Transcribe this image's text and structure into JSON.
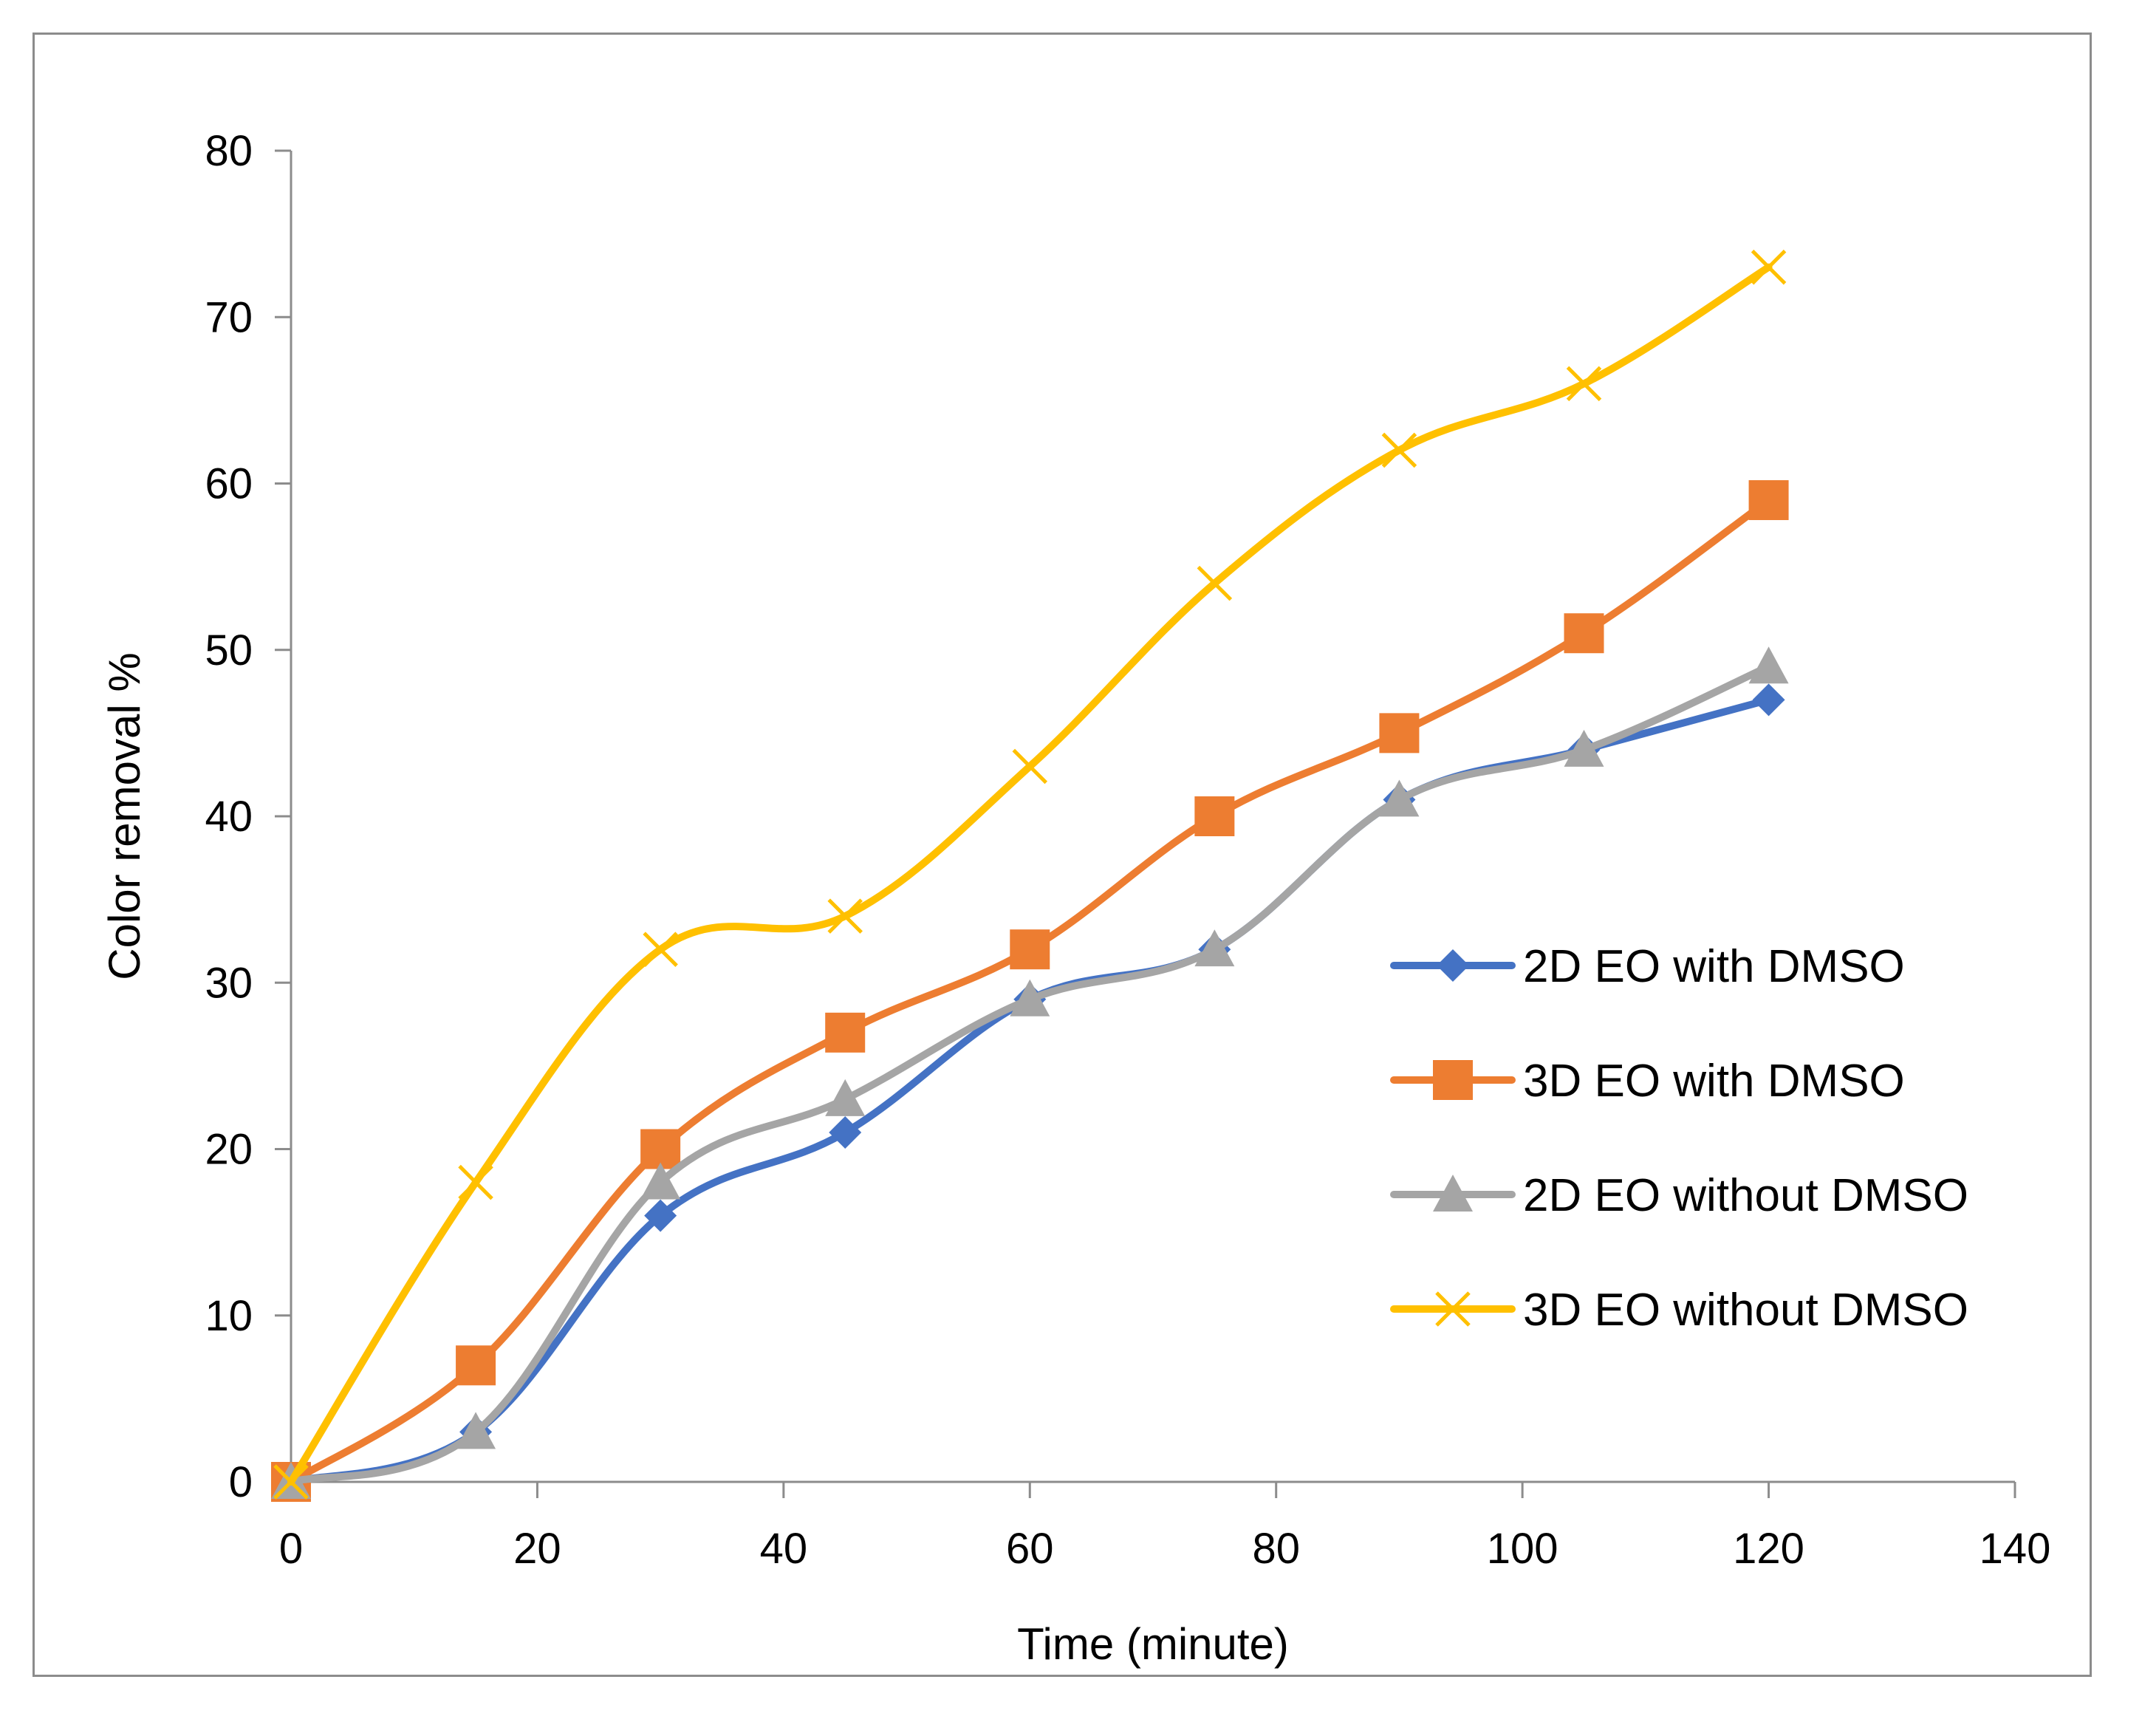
{
  "chart_data": {
    "type": "line",
    "title": "",
    "xlabel": "Time (minute)",
    "ylabel": "Color removal %",
    "xlim": [
      0,
      140
    ],
    "ylim": [
      0,
      80
    ],
    "xticks": [
      0,
      20,
      40,
      60,
      80,
      100,
      120,
      140
    ],
    "yticks": [
      0,
      10,
      20,
      30,
      40,
      50,
      60,
      70,
      80
    ],
    "grid": false,
    "legend_position": "right",
    "x": [
      0,
      15,
      30,
      45,
      60,
      75,
      90,
      105,
      120
    ],
    "series": [
      {
        "name": "2D EO with DMSO",
        "color": "#4472C4",
        "marker": "diamond",
        "values": [
          0,
          3,
          16,
          21,
          29,
          32,
          41,
          44,
          47
        ]
      },
      {
        "name": "3D EO with DMSO",
        "color": "#ED7D31",
        "marker": "square",
        "values": [
          0,
          7,
          20,
          27,
          32,
          40,
          45,
          51,
          59
        ]
      },
      {
        "name": "2D EO without DMSO",
        "color": "#A5A5A5",
        "marker": "triangle",
        "values": [
          0,
          3,
          18,
          23,
          29,
          32,
          41,
          44,
          49
        ]
      },
      {
        "name": "3D EO without DMSO",
        "color": "#FFC000",
        "marker": "x",
        "values": [
          0,
          18,
          32,
          34,
          43,
          54,
          62,
          66,
          73
        ]
      }
    ]
  }
}
